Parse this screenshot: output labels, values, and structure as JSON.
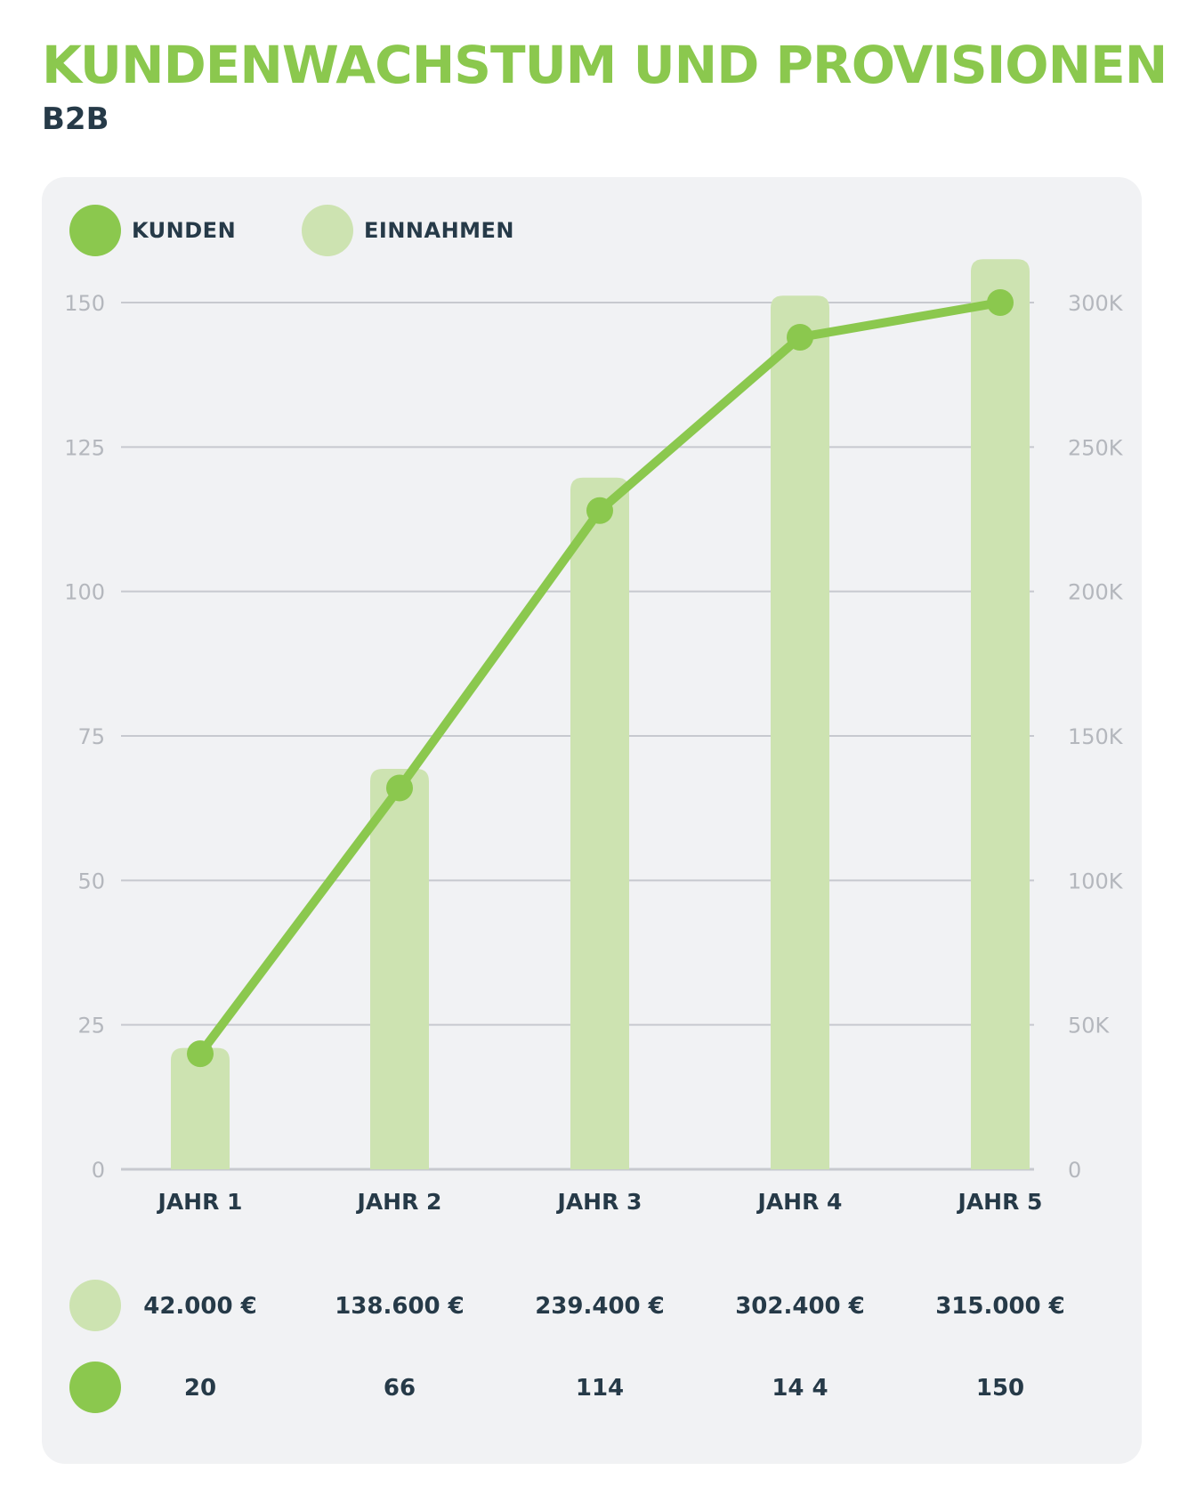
{
  "title": "KUNDENWACHSTUM UND PROVISIONEN",
  "subtitle": "B2B",
  "colors": {
    "title": "#8bc84e",
    "subtitle": "#263a48",
    "line": "#8bc84e",
    "bar": "#cde3b1",
    "grid": "#c7c9cf",
    "tick": "#b4b7bd",
    "text_dark": "#263a48"
  },
  "legend": [
    {
      "label": "KUNDEN",
      "color": "#8bc84e"
    },
    {
      "label": "EINNAHMEN",
      "color": "#cde3b1"
    }
  ],
  "chart_data": {
    "type": "bar+line",
    "categories": [
      "JAHR 1",
      "JAHR 2",
      "JAHR 3",
      "JAHR 4",
      "JAHR 5"
    ],
    "series": [
      {
        "name": "EINNAHMEN",
        "type": "bar",
        "axis": "right",
        "values": [
          42000,
          138600,
          239400,
          302400,
          315000
        ]
      },
      {
        "name": "KUNDEN",
        "type": "line",
        "axis": "left",
        "values": [
          20,
          66,
          114,
          144,
          150
        ]
      }
    ],
    "y_left": {
      "ticks": [
        "0",
        "25",
        "50",
        "75",
        "100",
        "125",
        "150"
      ],
      "min": 0,
      "max": 150
    },
    "y_right": {
      "ticks": [
        "0",
        "50K",
        "100K",
        "150K",
        "200K",
        "250K",
        "300K"
      ],
      "min": 0,
      "max": 300000
    },
    "grid": true,
    "legend_position": "top-left"
  },
  "table": {
    "revenue": [
      "42.000 €",
      "138.600 €",
      "239.400 €",
      "302.400 €",
      "315.000 €"
    ],
    "customers": [
      "20",
      "66",
      "114",
      "14 4",
      "150"
    ]
  }
}
